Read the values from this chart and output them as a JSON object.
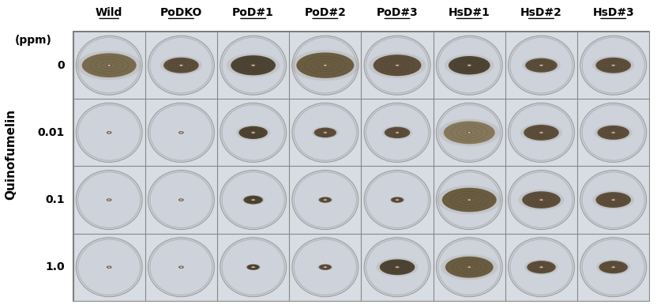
{
  "col_labels": [
    "Wild",
    "PoDKO",
    "PoD#1",
    "PoD#2",
    "PoD#3",
    "HsD#1",
    "HsD#2",
    "HsD#3"
  ],
  "row_labels": [
    "0",
    "0.01",
    "0.1",
    "1.0"
  ],
  "ppm_label": "(ppm)",
  "ylabel": "Quinofumelin",
  "n_rows": 4,
  "n_cols": 8,
  "bg_color": "#ffffff",
  "grid_line_color": "#888888",
  "label_fontsize": 10,
  "ylabel_fontsize": 11,
  "growth_data": [
    [
      0.85,
      0.55,
      0.7,
      0.9,
      0.75,
      0.65,
      0.5,
      0.55
    ],
    [
      0.1,
      0.1,
      0.45,
      0.35,
      0.4,
      0.8,
      0.55,
      0.5
    ],
    [
      0.1,
      0.1,
      0.3,
      0.2,
      0.2,
      0.85,
      0.6,
      0.55
    ],
    [
      0.1,
      0.1,
      0.2,
      0.2,
      0.55,
      0.75,
      0.45,
      0.45
    ]
  ],
  "colony_colors": [
    [
      "#6b5a38",
      "#4a3a22",
      "#3a2e1a",
      "#5a4a2a",
      "#4a3a22",
      "#3a2e1a",
      "#4a3a22",
      "#4a3a22"
    ],
    [
      "#6b5a38",
      "#4a3a22",
      "#3a2e1a",
      "#4a3a22",
      "#4a3a22",
      "#7a6a4a",
      "#4a3a22",
      "#4a3a22"
    ],
    [
      "#6b5a38",
      "#4a3a22",
      "#3a2e1a",
      "#4a3a22",
      "#4a3a22",
      "#5a4a2a",
      "#4a3a22",
      "#4a3a22"
    ],
    [
      "#6b5a38",
      "#4a3a22",
      "#3a2e1a",
      "#4a3a22",
      "#3a2e1a",
      "#5a4a2a",
      "#4a3a22",
      "#4a3a22"
    ]
  ]
}
